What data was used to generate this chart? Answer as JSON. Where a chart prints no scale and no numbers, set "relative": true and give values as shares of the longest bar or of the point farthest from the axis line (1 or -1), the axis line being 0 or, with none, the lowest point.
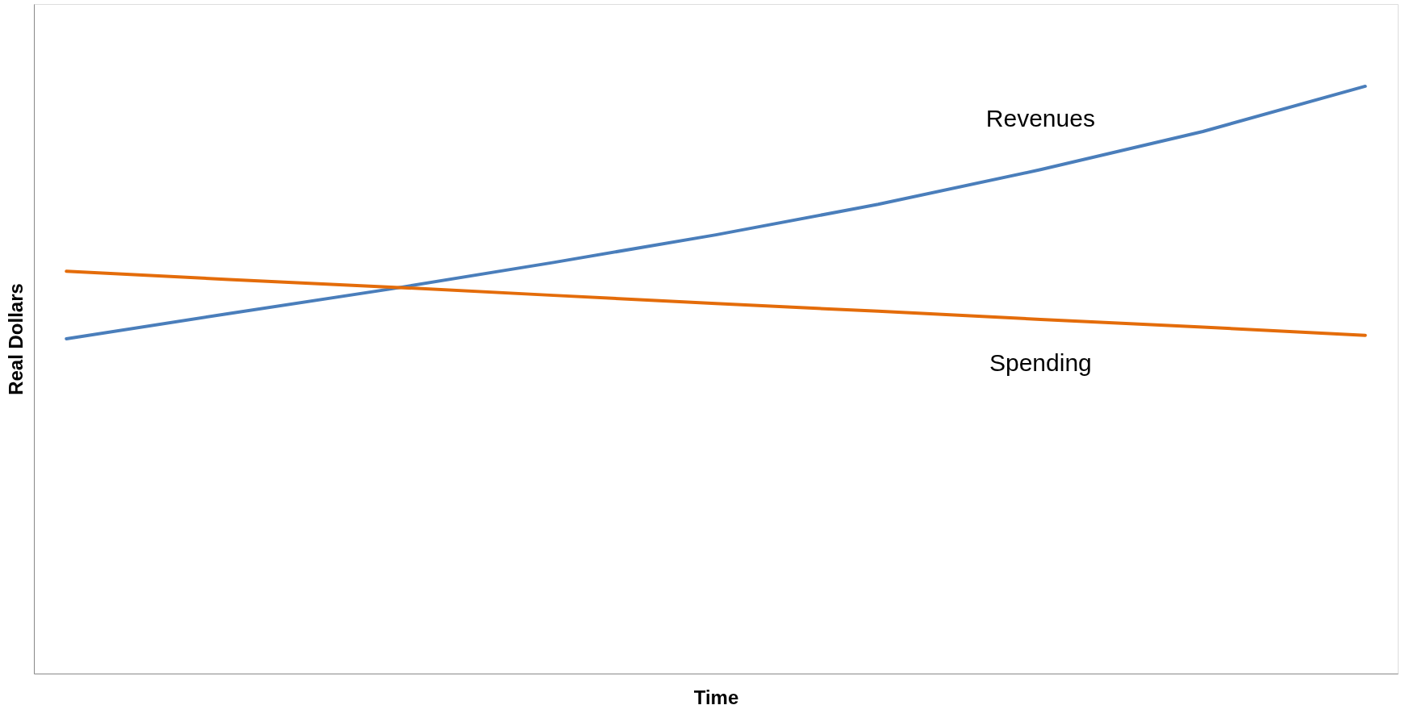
{
  "chart_data": {
    "type": "line",
    "relative": true,
    "xlabel": "Time",
    "ylabel": "Real Dollars",
    "categories": [
      null,
      null,
      null,
      null,
      null,
      null,
      null,
      null,
      null
    ],
    "legend": false,
    "grid": false,
    "series": [
      {
        "name": "Revenues",
        "color": "#4a7ebb",
        "values": [
          0.57,
          0.613,
          0.655,
          0.7,
          0.747,
          0.799,
          0.858,
          0.923,
          1.0
        ]
      },
      {
        "name": "Spending",
        "color": "#e46c0a",
        "values": [
          0.685,
          0.671,
          0.658,
          0.644,
          0.63,
          0.617,
          0.603,
          0.59,
          0.576
        ]
      }
    ]
  }
}
